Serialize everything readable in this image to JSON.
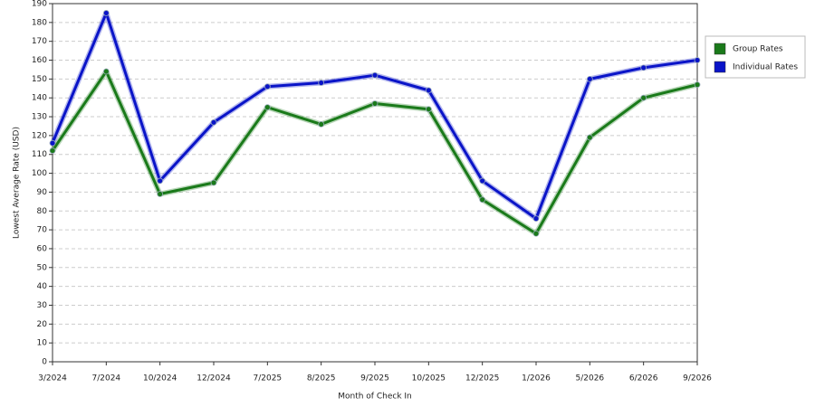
{
  "chart_data": {
    "type": "line",
    "x_label": "Month of Check In",
    "y_label": "Lowest Average Rate (USD)",
    "categories": [
      "3/2024",
      "7/2024",
      "10/2024",
      "12/2024",
      "7/2025",
      "8/2025",
      "9/2025",
      "10/2025",
      "12/2025",
      "1/2026",
      "5/2026",
      "6/2026",
      "9/2026"
    ],
    "series": [
      {
        "name": "Group Rates",
        "color": "#1a7a1a",
        "values": [
          112,
          154,
          89,
          95,
          135,
          126,
          137,
          134,
          86,
          68,
          119,
          140,
          147
        ]
      },
      {
        "name": "Individual Rates",
        "color": "#0a14c8",
        "values": [
          116,
          185,
          96,
          127,
          146,
          148,
          152,
          144,
          96,
          76,
          150,
          156,
          160
        ]
      }
    ],
    "ylim": [
      0,
      190
    ],
    "yticks": [
      0,
      10,
      20,
      30,
      40,
      50,
      60,
      70,
      80,
      90,
      100,
      110,
      120,
      130,
      140,
      150,
      160,
      170,
      180,
      190
    ],
    "grid": true,
    "legend": "right"
  }
}
